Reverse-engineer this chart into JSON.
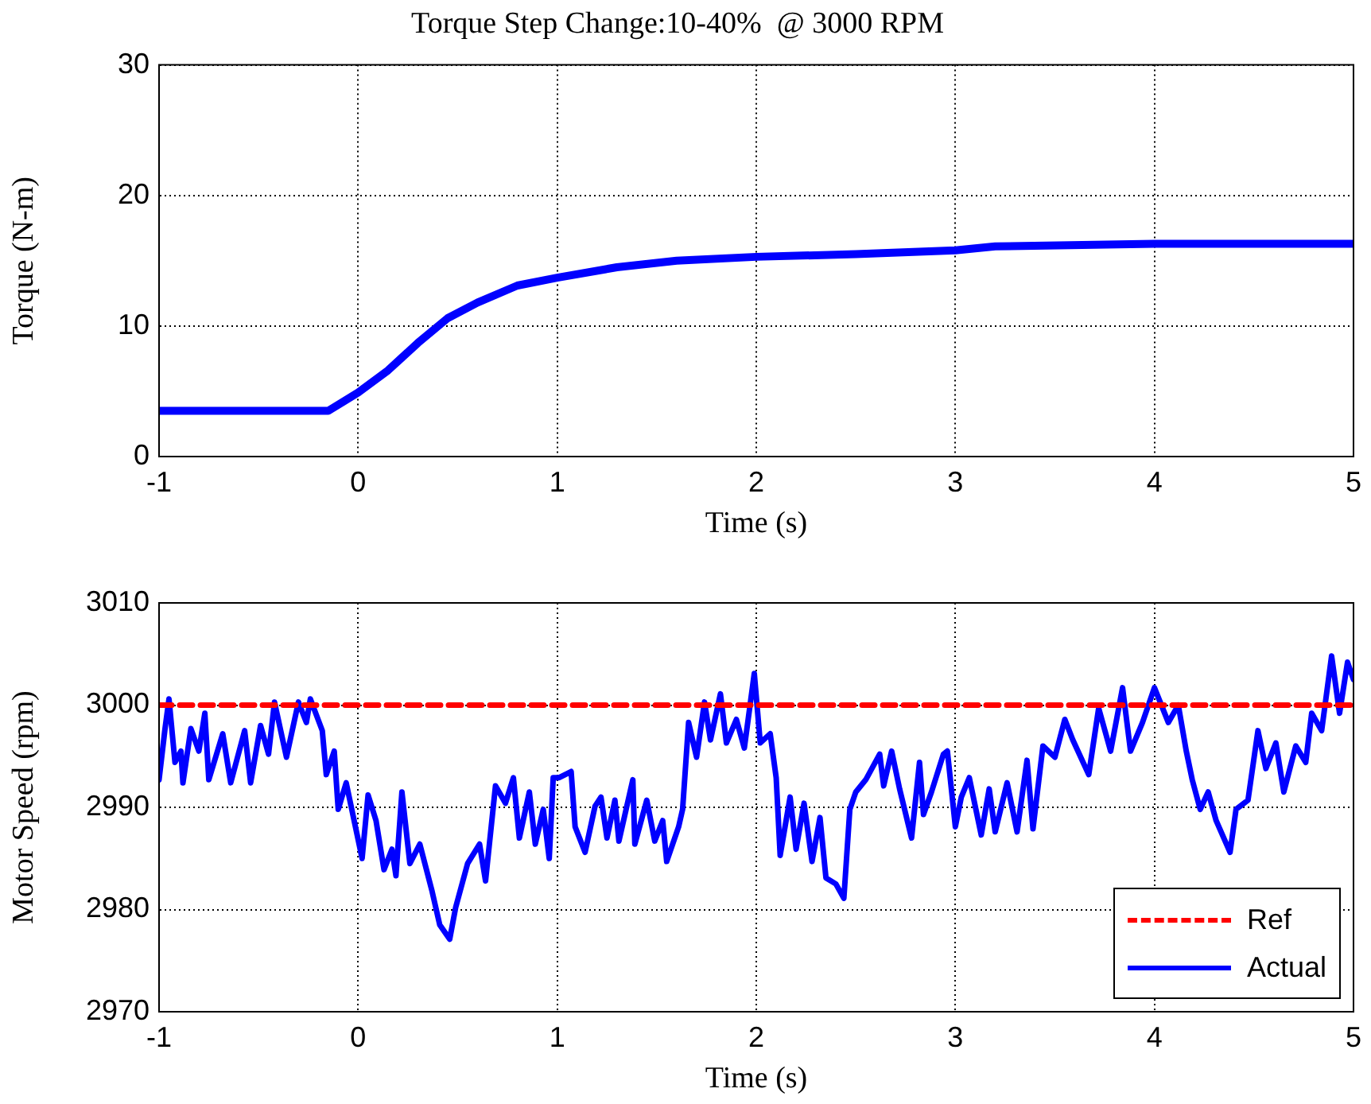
{
  "chart_data": [
    {
      "type": "line",
      "title": "Torque Step Change:10-40%  @ 3000 RPM",
      "xlabel": "Time (s)",
      "ylabel": "Torque (N-m)",
      "xlim": [
        -1,
        5
      ],
      "xticks": [
        -1,
        0,
        1,
        2,
        3,
        4,
        5
      ],
      "ylim": [
        0,
        30
      ],
      "yticks": [
        0,
        10,
        20,
        30
      ],
      "grid": true,
      "line_style": "solid",
      "marker": "none",
      "series": [
        {
          "color": "#0000ff",
          "x": [
            -1,
            -0.15,
            0,
            0.15,
            0.3,
            0.45,
            0.6,
            0.8,
            1.0,
            1.3,
            1.6,
            2.0,
            2.5,
            3.0,
            3.2,
            4.0,
            5.0
          ],
          "values": [
            3.5,
            3.5,
            4.9,
            6.6,
            8.7,
            10.6,
            11.8,
            13.1,
            13.7,
            14.5,
            15.0,
            15.3,
            15.5,
            15.8,
            16.1,
            16.3,
            16.3
          ]
        }
      ]
    },
    {
      "type": "line",
      "xlabel": "Time (s)",
      "ylabel": "Motor Speed (rpm)",
      "xlim": [
        -1,
        5
      ],
      "xticks": [
        -1,
        0,
        1,
        2,
        3,
        4,
        5
      ],
      "ylim": [
        2970,
        3010
      ],
      "yticks": [
        2970,
        2980,
        2990,
        3000,
        3010
      ],
      "grid": true,
      "legend": "bottom right",
      "marker": "none",
      "series": [
        {
          "name": "Ref",
          "color": "#ff0000",
          "line_style": "dashed",
          "x": [
            -1,
            5
          ],
          "values": [
            3000,
            3000
          ]
        },
        {
          "name": "Actual",
          "color": "#0000ff",
          "line_style": "solid",
          "x": [
            -1.0,
            -0.97,
            -0.95,
            -0.92,
            -0.89,
            -0.88,
            -0.84,
            -0.8,
            -0.77,
            -0.75,
            -0.68,
            -0.64,
            -0.57,
            -0.54,
            -0.49,
            -0.45,
            -0.42,
            -0.36,
            -0.3,
            -0.26,
            -0.24,
            -0.18,
            -0.16,
            -0.12,
            -0.1,
            -0.06,
            -0.02,
            0.02,
            0.05,
            0.09,
            0.13,
            0.17,
            0.19,
            0.22,
            0.26,
            0.31,
            0.37,
            0.41,
            0.46,
            0.49,
            0.55,
            0.61,
            0.64,
            0.69,
            0.74,
            0.78,
            0.81,
            0.86,
            0.89,
            0.93,
            0.96,
            0.98,
            1.01,
            1.07,
            1.09,
            1.14,
            1.19,
            1.22,
            1.25,
            1.29,
            1.31,
            1.38,
            1.39,
            1.45,
            1.49,
            1.53,
            1.55,
            1.61,
            1.63,
            1.66,
            1.7,
            1.74,
            1.77,
            1.82,
            1.85,
            1.9,
            1.94,
            1.99,
            2.02,
            2.07,
            2.1,
            2.12,
            2.17,
            2.2,
            2.24,
            2.28,
            2.32,
            2.35,
            2.4,
            2.44,
            2.47,
            2.5,
            2.55,
            2.62,
            2.64,
            2.68,
            2.72,
            2.78,
            2.82,
            2.84,
            2.88,
            2.94,
            2.96,
            3.0,
            3.03,
            3.07,
            3.13,
            3.17,
            3.2,
            3.26,
            3.31,
            3.36,
            3.39,
            3.44,
            3.5,
            3.55,
            3.59,
            3.67,
            3.72,
            3.78,
            3.84,
            3.88,
            3.94,
            4.0,
            4.07,
            4.12,
            4.16,
            4.19,
            4.23,
            4.27,
            4.31,
            4.38,
            4.41,
            4.47,
            4.52,
            4.56,
            4.61,
            4.65,
            4.71,
            4.76,
            4.79,
            4.84,
            4.89,
            4.93,
            4.97,
            5.0
          ],
          "values": [
            2992.7,
            2997.7,
            3000.6,
            2994.4,
            2995.5,
            2992.4,
            2997.7,
            2995.5,
            2999.2,
            2992.7,
            2997.2,
            2992.4,
            2997.5,
            2992.4,
            2998,
            2995.2,
            3000.3,
            2994.9,
            3000.3,
            2998.3,
            3000.6,
            2997.5,
            2993.2,
            2995.5,
            2989.8,
            2992.4,
            2988.7,
            2985,
            2991.2,
            2988.7,
            2983.9,
            2985.9,
            2983.3,
            2991.5,
            2984.5,
            2986.4,
            2981.9,
            2978.5,
            2977.1,
            2980.2,
            2984.5,
            2986.4,
            2982.8,
            2992.1,
            2990.4,
            2992.9,
            2987,
            2991.5,
            2986.4,
            2989.8,
            2985,
            2992.9,
            2992.9,
            2993.5,
            2988.1,
            2985.6,
            2990.1,
            2991,
            2987,
            2990.7,
            2986.7,
            2992.7,
            2986.4,
            2990.7,
            2986.7,
            2988.7,
            2984.7,
            2988.1,
            2989.8,
            2998.3,
            2994.9,
            3000.3,
            2996.6,
            3001.1,
            2996.3,
            2998.6,
            2995.8,
            3003.1,
            2996.3,
            2997.2,
            2992.9,
            2985.3,
            2991,
            2985.9,
            2990.4,
            2984.7,
            2989,
            2983.1,
            2982.5,
            2981.1,
            2989.8,
            2991.5,
            2992.7,
            2995.2,
            2992.1,
            2995.5,
            2991.8,
            2987,
            2994.4,
            2989.3,
            2991.5,
            2995.2,
            2995.5,
            2988.1,
            2991,
            2992.9,
            2987.3,
            2991.8,
            2987.6,
            2992.4,
            2987.6,
            2994.6,
            2987.9,
            2996,
            2994.9,
            2998.6,
            2996.6,
            2993.2,
            2999.7,
            2995.5,
            3001.7,
            2995.5,
            2998.3,
            3001.7,
            2998.3,
            3000,
            2995.5,
            2992.7,
            2989.8,
            2991.5,
            2988.7,
            2985.6,
            2989.8,
            2990.7,
            2997.5,
            2993.8,
            2996.3,
            2991.5,
            2996,
            2994.4,
            2999.2,
            2997.5,
            3004.8,
            2999.2,
            3004.2,
            3002.5
          ]
        }
      ]
    }
  ]
}
